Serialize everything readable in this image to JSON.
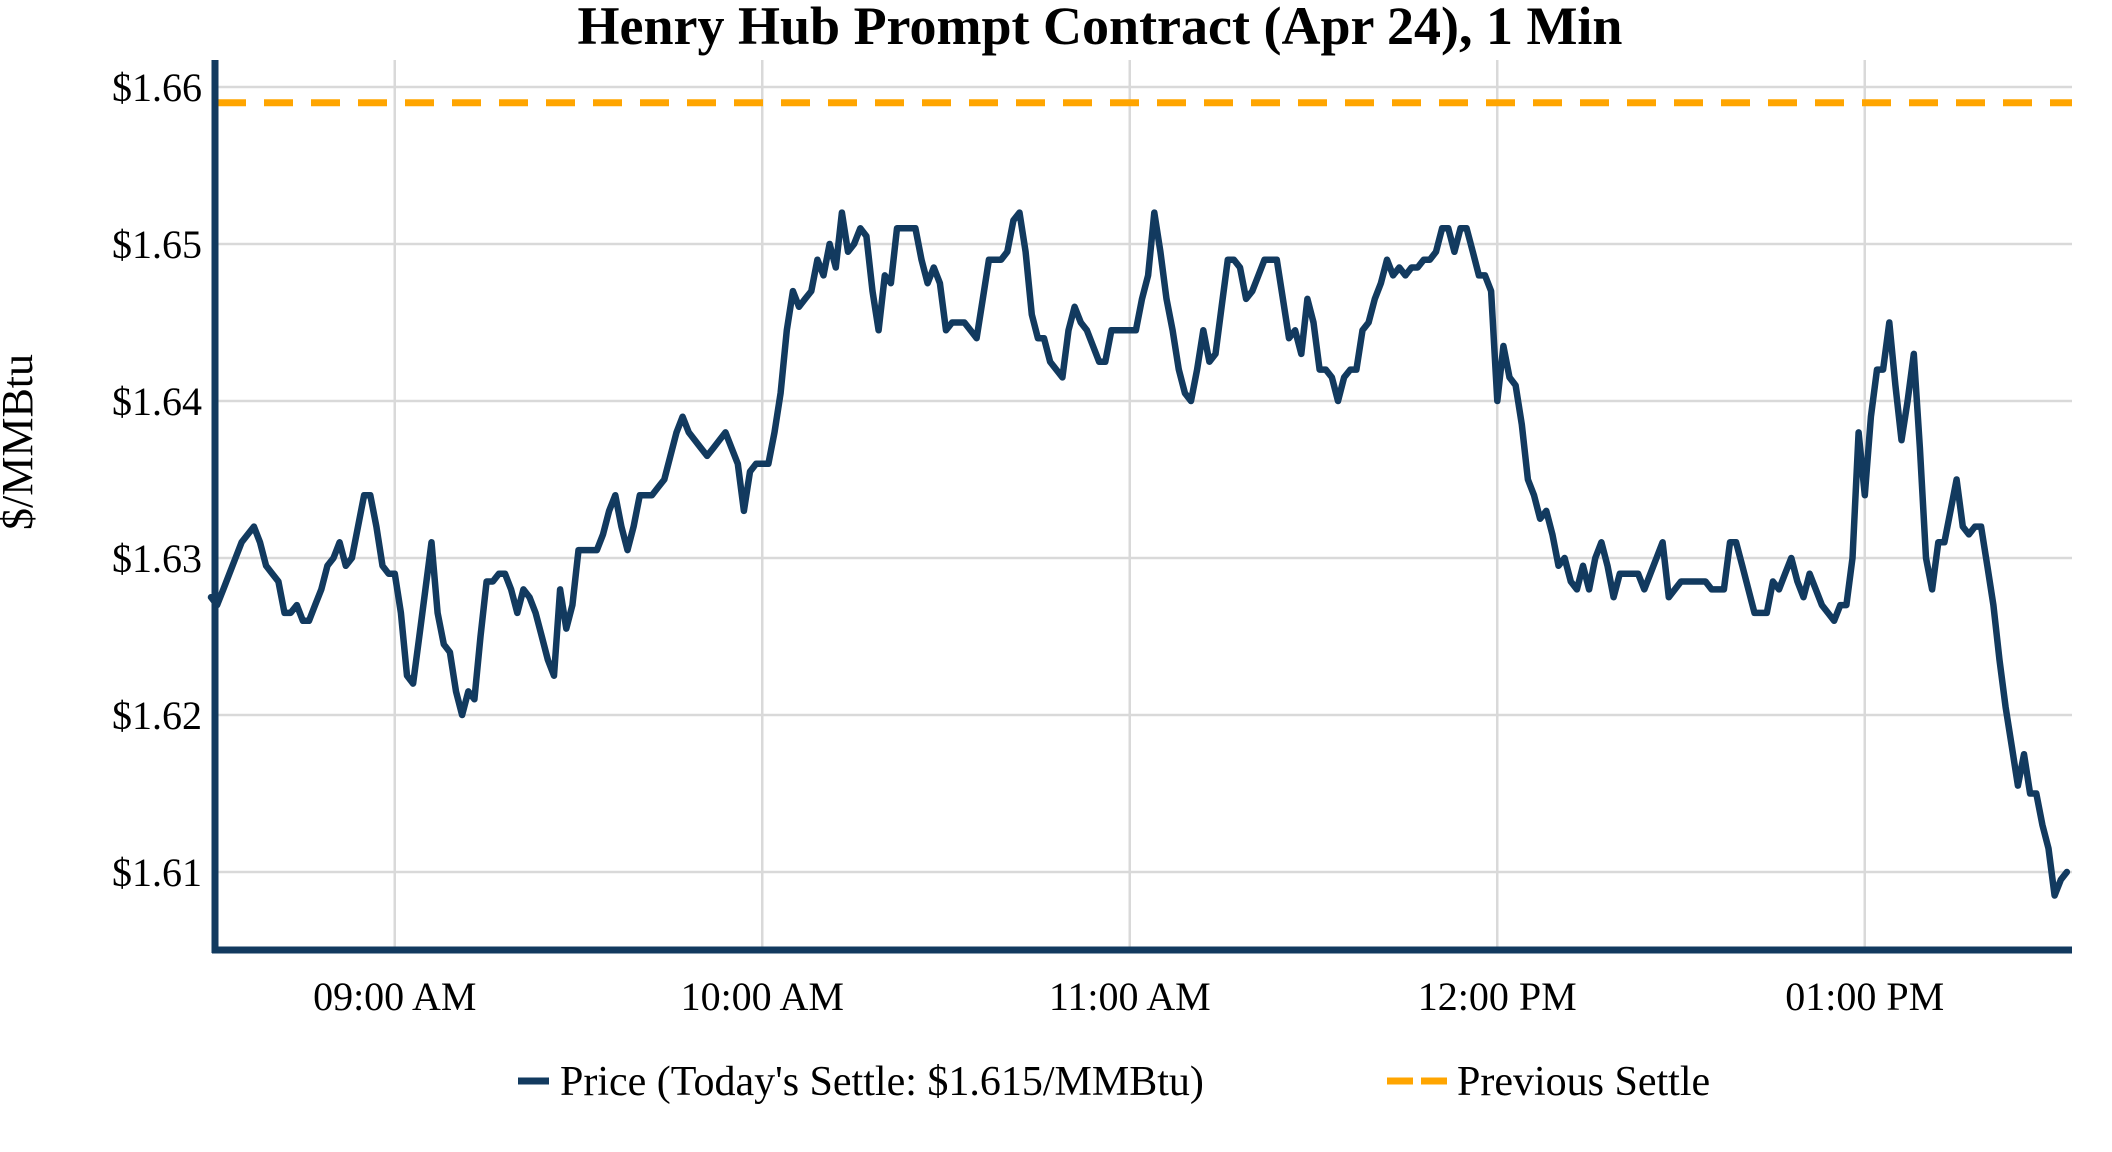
{
  "chart": {
    "title": "Henry Hub Prompt Contract (Apr 24), 1 Min",
    "y_axis_title": "$/MMBtu",
    "colors": {
      "price_line": "#123a5f",
      "previous_settle_line": "#ffa500",
      "gridline": "#d9d9d9",
      "axis_spine": "#123a5f",
      "text": "#000000",
      "background": "#ffffff"
    },
    "legend": {
      "price_label": "Price (Today's Settle: $1.615/MMBtu)",
      "previous_settle_label": "Previous Settle"
    }
  },
  "chart_data": {
    "type": "line",
    "title": "Henry Hub Prompt Contract (Apr 24), 1 Min",
    "xlabel": "",
    "ylabel": "$/MMBtu",
    "grid": true,
    "legend_position": "bottom",
    "ylim": [
      1.605,
      1.662
    ],
    "y_ticks": [
      {
        "value": 1.61,
        "label": "$1.61"
      },
      {
        "value": 1.62,
        "label": "$1.62"
      },
      {
        "value": 1.63,
        "label": "$1.63"
      },
      {
        "value": 1.64,
        "label": "$1.64"
      },
      {
        "value": 1.65,
        "label": "$1.65"
      },
      {
        "value": 1.66,
        "label": "$1.66"
      }
    ],
    "x_ticks": [
      {
        "minute": 30,
        "label": "09:00 AM"
      },
      {
        "minute": 90,
        "label": "10:00 AM"
      },
      {
        "minute": 150,
        "label": "11:00 AM"
      },
      {
        "minute": 210,
        "label": "12:00 PM"
      },
      {
        "minute": 270,
        "label": "01:00 PM"
      }
    ],
    "today_settle": 1.615,
    "previous_settle": 1.659,
    "series": [
      {
        "name": "Price (Today's Settle: $1.615/MMBtu)",
        "type": "line",
        "color": "#123a5f",
        "start_time": "08:30 AM",
        "end_time": "01:33 PM",
        "interval_minutes": 1,
        "values": [
          1.6275,
          1.627,
          1.628,
          1.629,
          1.63,
          1.631,
          1.6315,
          1.632,
          1.631,
          1.6295,
          1.629,
          1.6285,
          1.6265,
          1.6265,
          1.627,
          1.626,
          1.626,
          1.627,
          1.628,
          1.6295,
          1.63,
          1.631,
          1.6295,
          1.63,
          1.632,
          1.634,
          1.634,
          1.632,
          1.6295,
          1.629,
          1.629,
          1.6265,
          1.6225,
          1.622,
          1.625,
          1.628,
          1.631,
          1.6265,
          1.6245,
          1.624,
          1.6215,
          1.62,
          1.6215,
          1.621,
          1.625,
          1.6285,
          1.6285,
          1.629,
          1.629,
          1.628,
          1.6265,
          1.628,
          1.6275,
          1.6265,
          1.625,
          1.6235,
          1.6225,
          1.628,
          1.6255,
          1.627,
          1.6305,
          1.6305,
          1.6305,
          1.6305,
          1.6315,
          1.633,
          1.634,
          1.632,
          1.6305,
          1.632,
          1.634,
          1.634,
          1.634,
          1.6345,
          1.635,
          1.6365,
          1.638,
          1.639,
          1.638,
          1.6375,
          1.637,
          1.6365,
          1.637,
          1.6375,
          1.638,
          1.637,
          1.636,
          1.633,
          1.6355,
          1.636,
          1.636,
          1.636,
          1.638,
          1.6405,
          1.6445,
          1.647,
          1.646,
          1.6465,
          1.647,
          1.649,
          1.648,
          1.65,
          1.6485,
          1.652,
          1.6495,
          1.65,
          1.651,
          1.6505,
          1.647,
          1.6445,
          1.648,
          1.6475,
          1.651,
          1.651,
          1.651,
          1.651,
          1.649,
          1.6475,
          1.6485,
          1.6475,
          1.6445,
          1.645,
          1.645,
          1.645,
          1.6445,
          1.644,
          1.6465,
          1.649,
          1.649,
          1.649,
          1.6495,
          1.6515,
          1.652,
          1.6495,
          1.6455,
          1.644,
          1.644,
          1.6425,
          1.642,
          1.6415,
          1.6445,
          1.646,
          1.645,
          1.6445,
          1.6435,
          1.6425,
          1.6425,
          1.6445,
          1.6445,
          1.6445,
          1.6445,
          1.6445,
          1.6465,
          1.648,
          1.652,
          1.6495,
          1.6465,
          1.6445,
          1.642,
          1.6405,
          1.64,
          1.642,
          1.6445,
          1.6425,
          1.643,
          1.646,
          1.649,
          1.649,
          1.6485,
          1.6465,
          1.647,
          1.648,
          1.649,
          1.649,
          1.649,
          1.6465,
          1.644,
          1.6445,
          1.643,
          1.6465,
          1.645,
          1.642,
          1.642,
          1.6415,
          1.64,
          1.6415,
          1.642,
          1.642,
          1.6445,
          1.645,
          1.6465,
          1.6475,
          1.649,
          1.648,
          1.6485,
          1.648,
          1.6485,
          1.6485,
          1.649,
          1.649,
          1.6495,
          1.651,
          1.651,
          1.6495,
          1.651,
          1.651,
          1.6495,
          1.648,
          1.648,
          1.647,
          1.64,
          1.6435,
          1.6415,
          1.641,
          1.6385,
          1.635,
          1.634,
          1.6325,
          1.633,
          1.6315,
          1.6295,
          1.63,
          1.6285,
          1.628,
          1.6295,
          1.628,
          1.63,
          1.631,
          1.6295,
          1.6275,
          1.629,
          1.629,
          1.629,
          1.629,
          1.628,
          1.629,
          1.63,
          1.631,
          1.6275,
          1.628,
          1.6285,
          1.6285,
          1.6285,
          1.6285,
          1.6285,
          1.628,
          1.628,
          1.628,
          1.631,
          1.631,
          1.6295,
          1.628,
          1.6265,
          1.6265,
          1.6265,
          1.6285,
          1.628,
          1.629,
          1.63,
          1.6285,
          1.6275,
          1.629,
          1.628,
          1.627,
          1.6265,
          1.626,
          1.627,
          1.627,
          1.63,
          1.638,
          1.634,
          1.639,
          1.642,
          1.642,
          1.645,
          1.641,
          1.6375,
          1.64,
          1.643,
          1.637,
          1.63,
          1.628,
          1.631,
          1.631,
          1.633,
          1.635,
          1.632,
          1.6315,
          1.632,
          1.632,
          1.6295,
          1.627,
          1.6235,
          1.6205,
          1.618,
          1.6155,
          1.6175,
          1.615,
          1.615,
          1.613,
          1.6115,
          1.6085,
          1.6095,
          1.61
        ]
      },
      {
        "name": "Previous Settle",
        "type": "hline",
        "style": "dashed",
        "color": "#ffa500",
        "value": 1.659
      }
    ]
  }
}
